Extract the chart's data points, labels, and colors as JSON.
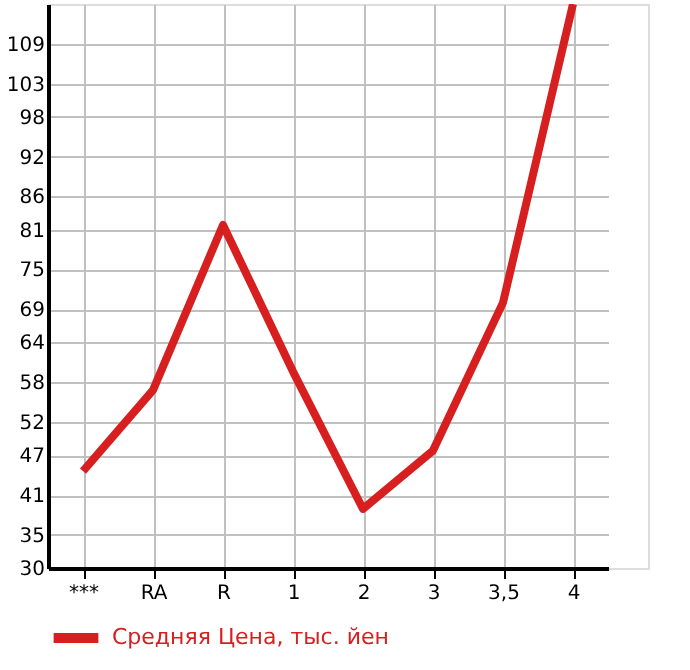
{
  "chart_data": {
    "type": "line",
    "categories": [
      "***",
      "RA",
      "R",
      "1",
      "2",
      "3",
      "3,5",
      "4"
    ],
    "series": [
      {
        "name": "Средняя Цена, тыс. йен",
        "color": "#d71f1f",
        "values": [
          44.6,
          56.8,
          81.7,
          59.6,
          38.9,
          47.7,
          70.0,
          115
        ]
      }
    ],
    "ylim": [
      30,
      115
    ],
    "yticks": [
      30,
      35,
      41,
      47,
      52,
      58,
      64,
      69,
      75,
      81,
      86,
      92,
      98,
      103,
      109
    ],
    "grid": true,
    "legend": "bottom",
    "marker": "none",
    "line_style": "solid"
  }
}
